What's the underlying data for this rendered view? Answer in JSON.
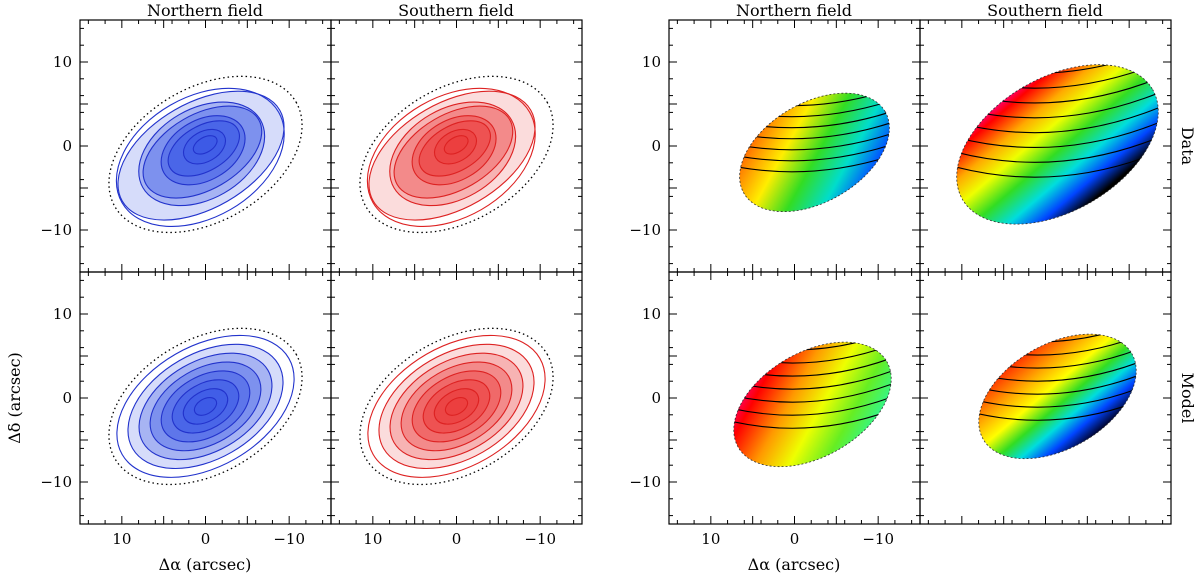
{
  "figure": {
    "column_titles": [
      "Northern field",
      "Southern field",
      "Northern field",
      "Southern field"
    ],
    "row_labels": [
      "Data",
      "Model"
    ],
    "xlabel": "Δα (arcsec)",
    "ylabel": "Δδ (arcsec)"
  },
  "chart_data": {
    "type": "heatmap",
    "description_scope": "2x4 grid of sky-map panels: intensity maps (blue/red) and velocity maps (rainbow), data vs model",
    "xlim": [
      15,
      -15
    ],
    "ylim": [
      -15,
      15
    ],
    "x_ticks": [
      10,
      0,
      -10
    ],
    "y_ticks": [
      10,
      0,
      -10
    ],
    "x_tick_labels": [
      "10",
      "0",
      "−10"
    ],
    "y_tick_labels": [
      "10",
      "0",
      "−10"
    ],
    "xlabel": "Δα (arcsec)",
    "ylabel": "Δδ (arcsec)",
    "aperture_ellipse": {
      "center": [
        0,
        -1
      ],
      "semi_major": 12.5,
      "semi_minor": 8,
      "pa_deg": 30
    },
    "panels": [
      {
        "row": "Data",
        "column": "Northern field",
        "kind": "intensity",
        "color": "#2233cc",
        "contour_levels": 8
      },
      {
        "row": "Data",
        "column": "Southern field",
        "kind": "intensity",
        "color": "#dd2222",
        "contour_levels": 8
      },
      {
        "row": "Data",
        "column": "Northern field",
        "kind": "velocity",
        "colormap": "rainbow",
        "contour_levels": 8
      },
      {
        "row": "Data",
        "column": "Southern field",
        "kind": "velocity",
        "colormap": "rainbow",
        "contour_levels": 8
      },
      {
        "row": "Model",
        "column": "Northern field",
        "kind": "intensity",
        "color": "#2233cc",
        "contour_levels": 8
      },
      {
        "row": "Model",
        "column": "Southern field",
        "kind": "intensity",
        "color": "#dd2222",
        "contour_levels": 8
      },
      {
        "row": "Model",
        "column": "Northern field",
        "kind": "velocity",
        "colormap": "rainbow",
        "contour_levels": 7
      },
      {
        "row": "Model",
        "column": "Southern field",
        "kind": "velocity",
        "colormap": "rainbow",
        "contour_levels": 7
      }
    ]
  }
}
